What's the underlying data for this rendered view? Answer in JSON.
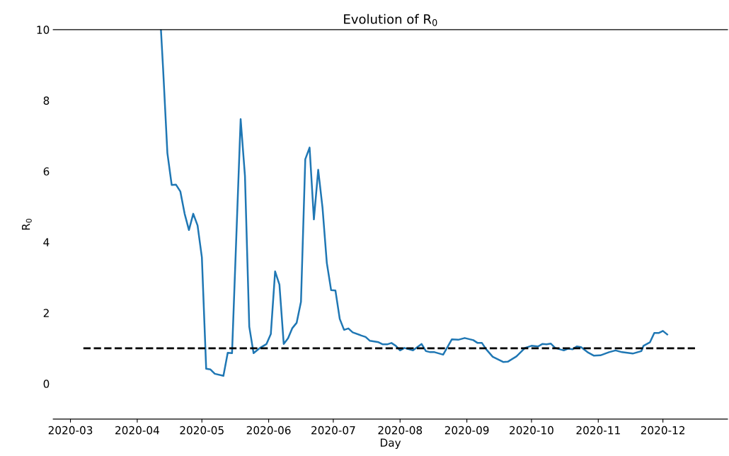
{
  "chart_data": {
    "type": "line",
    "title": "Evolution of R$_{0}$",
    "xlabel": "Day",
    "ylabel": "R$_{0}$",
    "xlim": [
      "2020-02-22",
      "2020-12-31"
    ],
    "ylim": [
      -1,
      10
    ],
    "xticks": [
      "2020-03",
      "2020-04",
      "2020-05",
      "2020-06",
      "2020-07",
      "2020-08",
      "2020-09",
      "2020-10",
      "2020-11",
      "2020-12"
    ],
    "yticks": [
      0,
      2,
      4,
      6,
      8,
      10
    ],
    "grid": false,
    "legend": false,
    "series": [
      {
        "color": "#1f77b4",
        "line_style": "solid",
        "x": [
          "2020-04-12",
          "2020-04-13",
          "2020-04-15",
          "2020-04-17",
          "2020-04-19",
          "2020-04-21",
          "2020-04-23",
          "2020-04-25",
          "2020-04-27",
          "2020-04-29",
          "2020-05-01",
          "2020-05-03",
          "2020-05-05",
          "2020-05-07",
          "2020-05-11",
          "2020-05-13",
          "2020-05-15",
          "2020-05-19",
          "2020-05-21",
          "2020-05-23",
          "2020-05-25",
          "2020-05-28",
          "2020-05-31",
          "2020-06-02",
          "2020-06-04",
          "2020-06-06",
          "2020-06-08",
          "2020-06-10",
          "2020-06-12",
          "2020-06-14",
          "2020-06-16",
          "2020-06-18",
          "2020-06-20",
          "2020-06-22",
          "2020-06-24",
          "2020-06-26",
          "2020-06-28",
          "2020-06-30",
          "2020-07-02",
          "2020-07-04",
          "2020-07-06",
          "2020-07-08",
          "2020-07-10",
          "2020-07-14",
          "2020-07-16",
          "2020-07-18",
          "2020-07-22",
          "2020-07-24",
          "2020-07-26",
          "2020-07-28",
          "2020-07-30",
          "2020-08-01",
          "2020-08-03",
          "2020-08-07",
          "2020-08-11",
          "2020-08-13",
          "2020-08-15",
          "2020-08-17",
          "2020-08-21",
          "2020-08-25",
          "2020-08-28",
          "2020-08-31",
          "2020-09-04",
          "2020-09-06",
          "2020-09-08",
          "2020-09-10",
          "2020-09-13",
          "2020-09-18",
          "2020-09-20",
          "2020-09-24",
          "2020-09-28",
          "2020-10-01",
          "2020-10-04",
          "2020-10-06",
          "2020-10-08",
          "2020-10-10",
          "2020-10-12",
          "2020-10-16",
          "2020-10-18",
          "2020-10-20",
          "2020-10-22",
          "2020-10-24",
          "2020-10-27",
          "2020-10-30",
          "2020-11-02",
          "2020-11-06",
          "2020-11-09",
          "2020-11-12",
          "2020-11-17",
          "2020-11-21",
          "2020-11-22",
          "2020-11-25",
          "2020-11-27",
          "2020-11-29",
          "2020-12-01",
          "2020-12-03"
        ],
        "values": [
          10.0,
          8.9,
          6.51,
          5.61,
          5.62,
          5.43,
          4.8,
          4.34,
          4.8,
          4.47,
          3.57,
          0.42,
          0.4,
          0.28,
          0.22,
          0.87,
          0.86,
          7.47,
          5.87,
          1.61,
          0.86,
          1.01,
          1.12,
          1.4,
          3.17,
          2.8,
          1.12,
          1.28,
          1.57,
          1.72,
          2.31,
          6.34,
          6.67,
          4.64,
          6.04,
          4.97,
          3.41,
          2.64,
          2.63,
          1.83,
          1.52,
          1.56,
          1.45,
          1.36,
          1.32,
          1.21,
          1.17,
          1.11,
          1.11,
          1.15,
          1.07,
          0.94,
          1.01,
          0.94,
          1.12,
          0.92,
          0.89,
          0.89,
          0.82,
          1.25,
          1.24,
          1.29,
          1.23,
          1.15,
          1.15,
          0.97,
          0.76,
          0.61,
          0.62,
          0.77,
          1.01,
          1.07,
          1.05,
          1.12,
          1.11,
          1.13,
          1.01,
          0.94,
          0.99,
          0.97,
          1.05,
          1.03,
          0.89,
          0.79,
          0.8,
          0.89,
          0.94,
          0.89,
          0.85,
          0.92,
          1.07,
          1.17,
          1.43,
          1.43,
          1.49,
          1.39
        ]
      },
      {
        "color": "#000000",
        "line_style": "dashed",
        "x": [
          "2020-03-07",
          "2020-12-16"
        ],
        "values": [
          1,
          1
        ]
      }
    ]
  }
}
